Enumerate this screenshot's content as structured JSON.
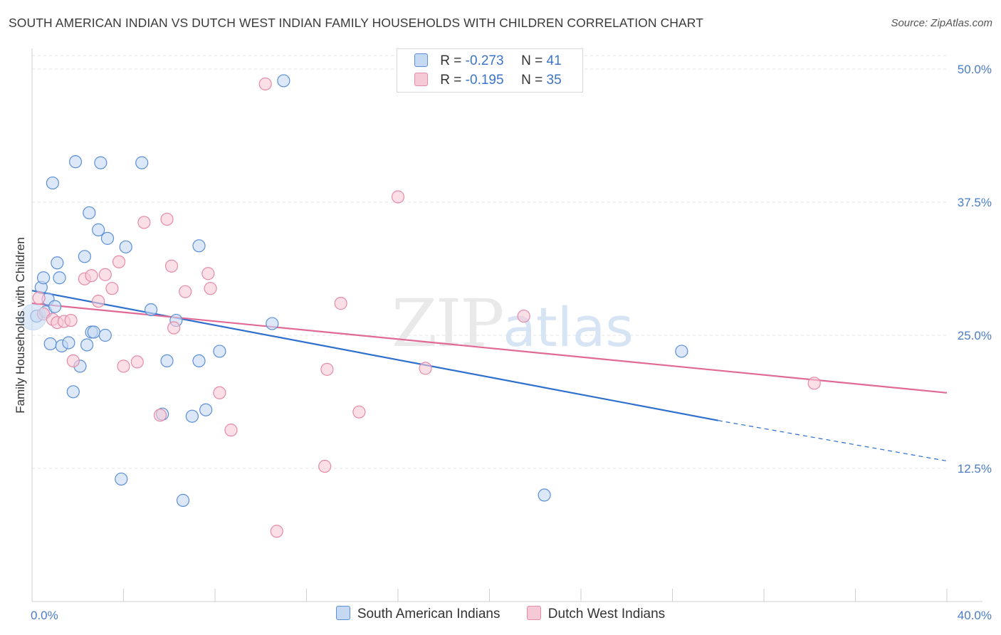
{
  "chart_data": {
    "type": "scatter",
    "title": "SOUTH AMERICAN INDIAN VS DUTCH WEST INDIAN FAMILY HOUSEHOLDS WITH CHILDREN CORRELATION CHART",
    "source": "Source: ZipAtlas.com",
    "xlabel": "",
    "ylabel": "Family Households with Children",
    "xlim": [
      0,
      40
    ],
    "ylim": [
      0,
      50
    ],
    "x_tick_labels": [
      "0.0%",
      "40.0%"
    ],
    "y_ticks": [
      12.5,
      25.0,
      37.5,
      50.0
    ],
    "y_tick_labels": [
      "12.5%",
      "25.0%",
      "37.5%",
      "50.0%"
    ],
    "watermark": "ZIPatlas",
    "legend_stats": [
      {
        "r_label": "R =",
        "r_value": "-0.273",
        "n_label": "N =",
        "n_value": "41"
      },
      {
        "r_label": "R =",
        "r_value": "-0.195",
        "n_label": "N =",
        "n_value": "35"
      }
    ],
    "series": [
      {
        "name": "South American Indians",
        "color": "#5b8fd6",
        "fill": "#c5d9f3",
        "trend": {
          "x0": 0,
          "y0": 29.2,
          "x1": 30,
          "y1": 17.0,
          "dash_to_x": 40,
          "dash_to_y": 13.2
        },
        "points": [
          [
            0.2,
            26.8
          ],
          [
            0.4,
            29.5
          ],
          [
            0.5,
            30.4
          ],
          [
            0.6,
            27.2
          ],
          [
            0.7,
            28.4
          ],
          [
            0.8,
            24.2
          ],
          [
            0.9,
            39.3
          ],
          [
            1.0,
            27.7
          ],
          [
            1.1,
            31.8
          ],
          [
            1.2,
            30.4
          ],
          [
            1.3,
            24.0
          ],
          [
            1.6,
            24.3
          ],
          [
            1.8,
            19.7
          ],
          [
            1.9,
            41.3
          ],
          [
            2.1,
            22.1
          ],
          [
            2.3,
            32.4
          ],
          [
            2.4,
            24.1
          ],
          [
            2.5,
            36.5
          ],
          [
            2.6,
            25.3
          ],
          [
            2.7,
            25.3
          ],
          [
            2.9,
            34.9
          ],
          [
            3.0,
            41.2
          ],
          [
            3.2,
            25.0
          ],
          [
            3.3,
            34.1
          ],
          [
            3.9,
            11.5
          ],
          [
            4.1,
            33.3
          ],
          [
            4.8,
            41.2
          ],
          [
            5.2,
            27.4
          ],
          [
            5.7,
            17.6
          ],
          [
            5.9,
            22.6
          ],
          [
            6.3,
            26.4
          ],
          [
            6.6,
            9.5
          ],
          [
            7.0,
            17.4
          ],
          [
            7.3,
            33.4
          ],
          [
            7.3,
            22.6
          ],
          [
            7.6,
            18.0
          ],
          [
            8.2,
            23.5
          ],
          [
            10.5,
            26.1
          ],
          [
            11.0,
            48.9
          ],
          [
            22.4,
            10.0
          ],
          [
            28.4,
            23.5
          ]
        ]
      },
      {
        "name": "Dutch West Indians",
        "color": "#e58aa7",
        "fill": "#f6c9d7",
        "trend": {
          "x0": 0,
          "y0": 28.0,
          "x1": 40,
          "y1": 19.6
        },
        "points": [
          [
            0.3,
            28.5
          ],
          [
            0.5,
            27.0
          ],
          [
            0.9,
            26.5
          ],
          [
            1.1,
            26.2
          ],
          [
            1.4,
            26.3
          ],
          [
            1.7,
            26.4
          ],
          [
            1.8,
            22.6
          ],
          [
            2.3,
            30.3
          ],
          [
            2.6,
            30.6
          ],
          [
            2.9,
            28.2
          ],
          [
            3.2,
            30.7
          ],
          [
            3.5,
            29.4
          ],
          [
            3.8,
            31.9
          ],
          [
            4.0,
            22.1
          ],
          [
            4.6,
            22.5
          ],
          [
            4.9,
            35.6
          ],
          [
            5.6,
            17.5
          ],
          [
            5.9,
            35.9
          ],
          [
            6.1,
            31.5
          ],
          [
            6.2,
            25.7
          ],
          [
            6.7,
            29.1
          ],
          [
            7.7,
            30.8
          ],
          [
            7.8,
            29.4
          ],
          [
            8.2,
            19.6
          ],
          [
            8.7,
            16.1
          ],
          [
            10.2,
            48.6
          ],
          [
            10.7,
            6.6
          ],
          [
            12.8,
            12.7
          ],
          [
            12.9,
            21.8
          ],
          [
            13.5,
            28.0
          ],
          [
            14.3,
            17.8
          ],
          [
            16.0,
            38.0
          ],
          [
            17.2,
            21.9
          ],
          [
            21.5,
            26.8
          ],
          [
            34.2,
            20.5
          ]
        ]
      }
    ]
  }
}
